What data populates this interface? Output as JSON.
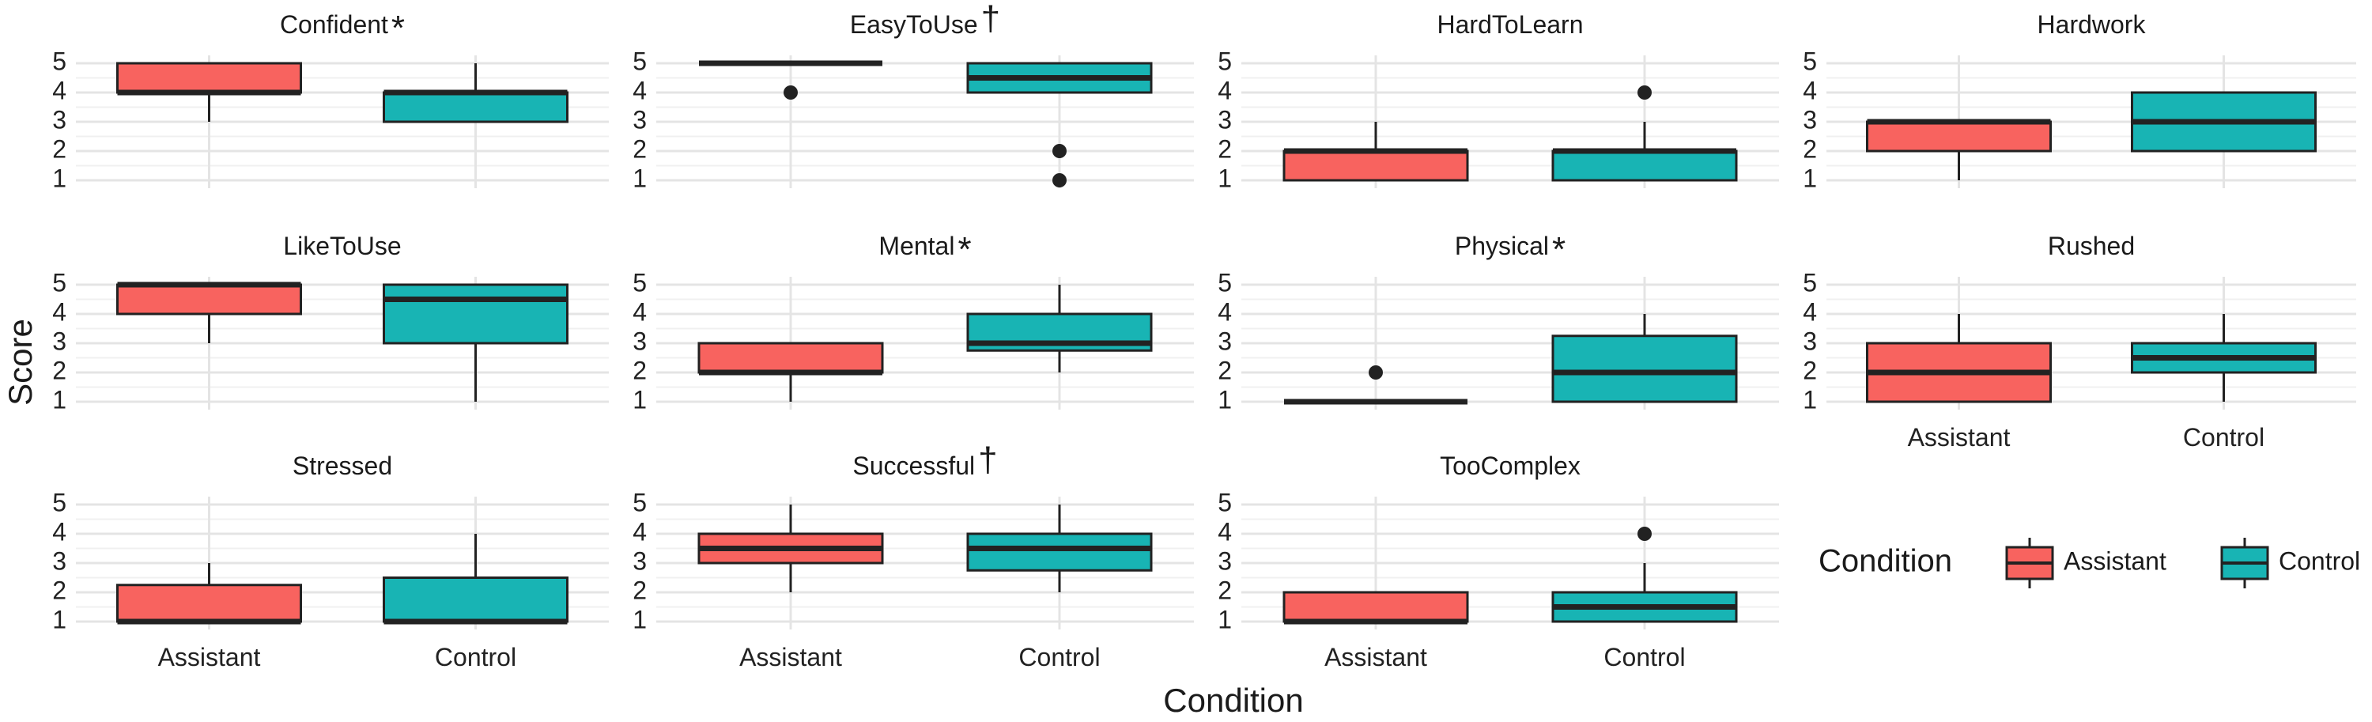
{
  "chart_data": {
    "type": "boxplot",
    "xlabel": "Condition",
    "ylabel": "Score",
    "ylim": [
      1,
      5
    ],
    "yticks": [
      1,
      2,
      3,
      4,
      5
    ],
    "categories": [
      "Assistant",
      "Control"
    ],
    "colors": {
      "Assistant": "#F8635F",
      "Control": "#18B4B4",
      "outline": "#222222",
      "grid": "#e4e4e4"
    },
    "grid": true,
    "legend": {
      "title": "Condition",
      "placement": "bottom-right",
      "entries": [
        "Assistant",
        "Control"
      ]
    },
    "panels": [
      {
        "title": "Confident",
        "mark": "*",
        "boxes": [
          {
            "group": "Assistant",
            "min": 3,
            "q1": 4,
            "median": 4,
            "q3": 5,
            "max": 5,
            "outliers": []
          },
          {
            "group": "Control",
            "min": 3,
            "q1": 3,
            "median": 4,
            "q3": 4,
            "max": 5,
            "outliers": []
          }
        ]
      },
      {
        "title": "EasyToUse",
        "mark": "†",
        "boxes": [
          {
            "group": "Assistant",
            "min": 5,
            "q1": 5,
            "median": 5,
            "q3": 5,
            "max": 5,
            "outliers": [
              4
            ]
          },
          {
            "group": "Control",
            "min": 4,
            "q1": 4,
            "median": 4.5,
            "q3": 5,
            "max": 5,
            "outliers": [
              2,
              1
            ]
          }
        ]
      },
      {
        "title": "HardToLearn",
        "mark": "",
        "boxes": [
          {
            "group": "Assistant",
            "min": 1,
            "q1": 1,
            "median": 2,
            "q3": 2,
            "max": 3,
            "outliers": []
          },
          {
            "group": "Control",
            "min": 1,
            "q1": 1,
            "median": 2,
            "q3": 2,
            "max": 3,
            "outliers": [
              4
            ]
          }
        ]
      },
      {
        "title": "Hardwork",
        "mark": "",
        "boxes": [
          {
            "group": "Assistant",
            "min": 1,
            "q1": 2,
            "median": 3,
            "q3": 3,
            "max": 3,
            "outliers": []
          },
          {
            "group": "Control",
            "min": 2,
            "q1": 2,
            "median": 3,
            "q3": 4,
            "max": 4,
            "outliers": []
          }
        ]
      },
      {
        "title": "LikeToUse",
        "mark": "",
        "boxes": [
          {
            "group": "Assistant",
            "min": 3,
            "q1": 4,
            "median": 5,
            "q3": 5,
            "max": 5,
            "outliers": []
          },
          {
            "group": "Control",
            "min": 1,
            "q1": 3,
            "median": 4.5,
            "q3": 5,
            "max": 5,
            "outliers": []
          }
        ]
      },
      {
        "title": "Mental",
        "mark": "*",
        "boxes": [
          {
            "group": "Assistant",
            "min": 1,
            "q1": 2,
            "median": 2,
            "q3": 3,
            "max": 3,
            "outliers": []
          },
          {
            "group": "Control",
            "min": 2,
            "q1": 2.75,
            "median": 3,
            "q3": 4,
            "max": 5,
            "outliers": []
          }
        ]
      },
      {
        "title": "Physical",
        "mark": "*",
        "boxes": [
          {
            "group": "Assistant",
            "min": 1,
            "q1": 1,
            "median": 1,
            "q3": 1,
            "max": 1,
            "outliers": [
              2
            ]
          },
          {
            "group": "Control",
            "min": 1,
            "q1": 1,
            "median": 2,
            "q3": 3.25,
            "max": 4,
            "outliers": []
          }
        ]
      },
      {
        "title": "Rushed",
        "mark": "",
        "boxes": [
          {
            "group": "Assistant",
            "min": 1,
            "q1": 1,
            "median": 2,
            "q3": 3,
            "max": 4,
            "outliers": []
          },
          {
            "group": "Control",
            "min": 1,
            "q1": 2,
            "median": 2.5,
            "q3": 3,
            "max": 4,
            "outliers": []
          }
        ]
      },
      {
        "title": "Stressed",
        "mark": "",
        "boxes": [
          {
            "group": "Assistant",
            "min": 1,
            "q1": 1,
            "median": 1,
            "q3": 2.25,
            "max": 3,
            "outliers": []
          },
          {
            "group": "Control",
            "min": 1,
            "q1": 1,
            "median": 1,
            "q3": 2.5,
            "max": 4,
            "outliers": []
          }
        ]
      },
      {
        "title": "Successful",
        "mark": "†",
        "boxes": [
          {
            "group": "Assistant",
            "min": 2,
            "q1": 3,
            "median": 3.5,
            "q3": 4,
            "max": 5,
            "outliers": []
          },
          {
            "group": "Control",
            "min": 2,
            "q1": 2.75,
            "median": 3.5,
            "q3": 4,
            "max": 5,
            "outliers": []
          }
        ]
      },
      {
        "title": "TooComplex",
        "mark": "",
        "boxes": [
          {
            "group": "Assistant",
            "min": 1,
            "q1": 1,
            "median": 1,
            "q3": 2,
            "max": 2,
            "outliers": []
          },
          {
            "group": "Control",
            "min": 1,
            "q1": 1,
            "median": 1.5,
            "q3": 2,
            "max": 3,
            "outliers": [
              4
            ]
          }
        ]
      }
    ]
  }
}
